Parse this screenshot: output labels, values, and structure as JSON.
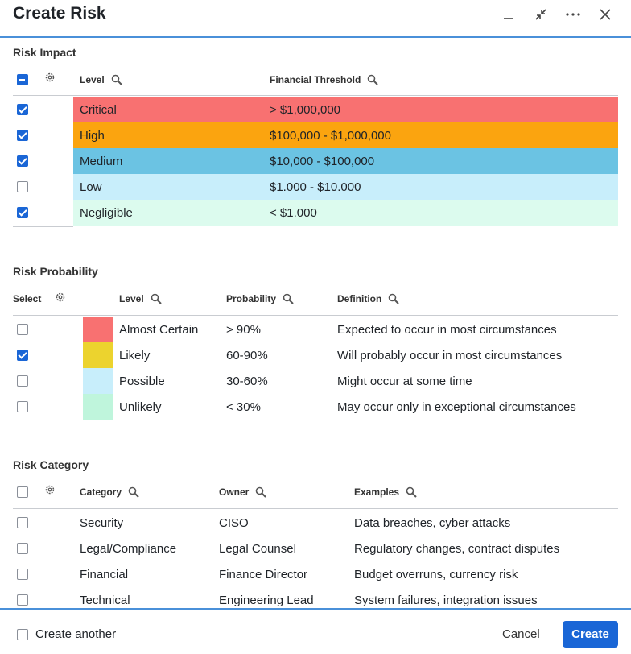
{
  "window": {
    "title": "Create Risk"
  },
  "impact": {
    "title": "Risk Impact",
    "headers": {
      "level": "Level",
      "threshold": "Financial Threshold"
    },
    "rows": [
      {
        "level": "Critical",
        "threshold": "> $1,000,000",
        "checked": true,
        "color": "#f87171"
      },
      {
        "level": "High",
        "threshold": "$100,000 - $1,000,000",
        "checked": true,
        "color": "#fba40f"
      },
      {
        "level": "Medium",
        "threshold": "$10,000 - $100,000",
        "checked": true,
        "color": "#6bc3e3"
      },
      {
        "level": "Low",
        "threshold": "$1.000 - $10.000",
        "checked": false,
        "color": "#c8eefb"
      },
      {
        "level": "Negligible",
        "threshold": "< $1.000",
        "checked": true,
        "color": "#dcfbee"
      }
    ]
  },
  "probability": {
    "title": "Risk Probability",
    "headers": {
      "select": "Select",
      "level": "Level",
      "probability": "Probability",
      "definition": "Definition"
    },
    "rows": [
      {
        "level": "Almost Certain",
        "probability": "> 90%",
        "definition": "Expected to occur in most circumstances",
        "checked": false,
        "color": "#f87171"
      },
      {
        "level": "Likely",
        "probability": "60-90%",
        "definition": "Will probably occur in most circumstances",
        "checked": true,
        "color": "#ecd32e"
      },
      {
        "level": "Possible",
        "probability": "30-60%",
        "definition": "Might occur at some time",
        "checked": false,
        "color": "#c8eefb"
      },
      {
        "level": "Unlikely",
        "probability": "< 30%",
        "definition": "May occur only in exceptional circumstances",
        "checked": false,
        "color": "#bff5dc"
      }
    ]
  },
  "category": {
    "title": "Risk Category",
    "headers": {
      "category": "Category",
      "owner": "Owner",
      "examples": "Examples"
    },
    "rows": [
      {
        "category": "Security",
        "owner": "CISO",
        "examples": "Data breaches, cyber attacks"
      },
      {
        "category": "Legal/Compliance",
        "owner": "Legal Counsel",
        "examples": "Regulatory changes, contract disputes"
      },
      {
        "category": "Financial",
        "owner": "Finance Director",
        "examples": "Budget overruns, currency risk"
      },
      {
        "category": "Technical",
        "owner": "Engineering Lead",
        "examples": "System failures, integration issues"
      }
    ]
  },
  "footer": {
    "create_another": "Create another",
    "cancel": "Cancel",
    "create": "Create"
  },
  "icons": {
    "minimize": "minimize-icon",
    "collapse": "collapse-icon",
    "more": "more-icon",
    "close": "close-icon",
    "search": "search-icon",
    "gear": "gear-icon"
  },
  "colors": {
    "accent": "#1a66d6",
    "divider": "#4a90d9"
  }
}
